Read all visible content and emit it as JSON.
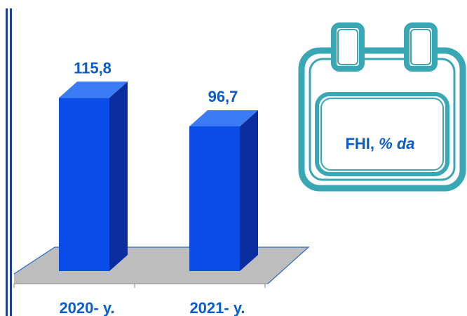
{
  "chart_data": {
    "type": "bar",
    "categories": [
      "2020- y.",
      "2021- y."
    ],
    "values": [
      115.8,
      96.7
    ],
    "data_labels": [
      "115,8",
      "96,7"
    ],
    "title": "",
    "xlabel": "",
    "ylabel": "",
    "ylim": [
      0,
      130
    ],
    "grid": false,
    "legend": "none",
    "bar_style": "3d"
  },
  "colors": {
    "bar_front": "#0a4de8",
    "bar_side": "#0a2ea0",
    "bar_top": "#3b7cf5",
    "floor": "#bdbdbd",
    "floor_edge": "#2e6bc4",
    "label_text": "#0a5cc8",
    "rule": "#1f3f8f",
    "card_stroke": "#3aa7b5"
  },
  "card": {
    "title": "FHI,",
    "unit": "% da",
    "icon": "calendar-icon"
  }
}
